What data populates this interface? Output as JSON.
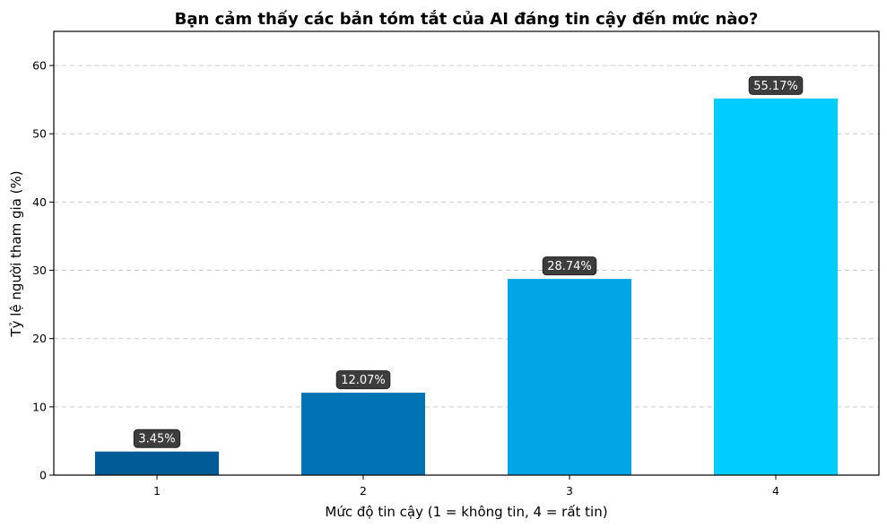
{
  "chart_data": {
    "type": "bar",
    "title": "Bạn cảm thấy các bản tóm tắt của AI đáng tin cậy đến mức nào?",
    "xlabel": "Mức độ tin cậy (1 = không tin, 4 = rất tin)",
    "ylabel": "Tỷ lệ người tham gia (%)",
    "categories": [
      "1",
      "2",
      "3",
      "4"
    ],
    "values": [
      3.45,
      12.07,
      28.74,
      55.17
    ],
    "data_labels": [
      "3.45%",
      "12.07%",
      "28.74%",
      "55.17%"
    ],
    "colors": [
      "#005b96",
      "#0073b4",
      "#00a6e6",
      "#00ccff"
    ],
    "ylim": [
      0,
      65
    ],
    "yticks": [
      0,
      10,
      20,
      30,
      40,
      50,
      60
    ],
    "grid": true,
    "grid_axis": "y"
  }
}
